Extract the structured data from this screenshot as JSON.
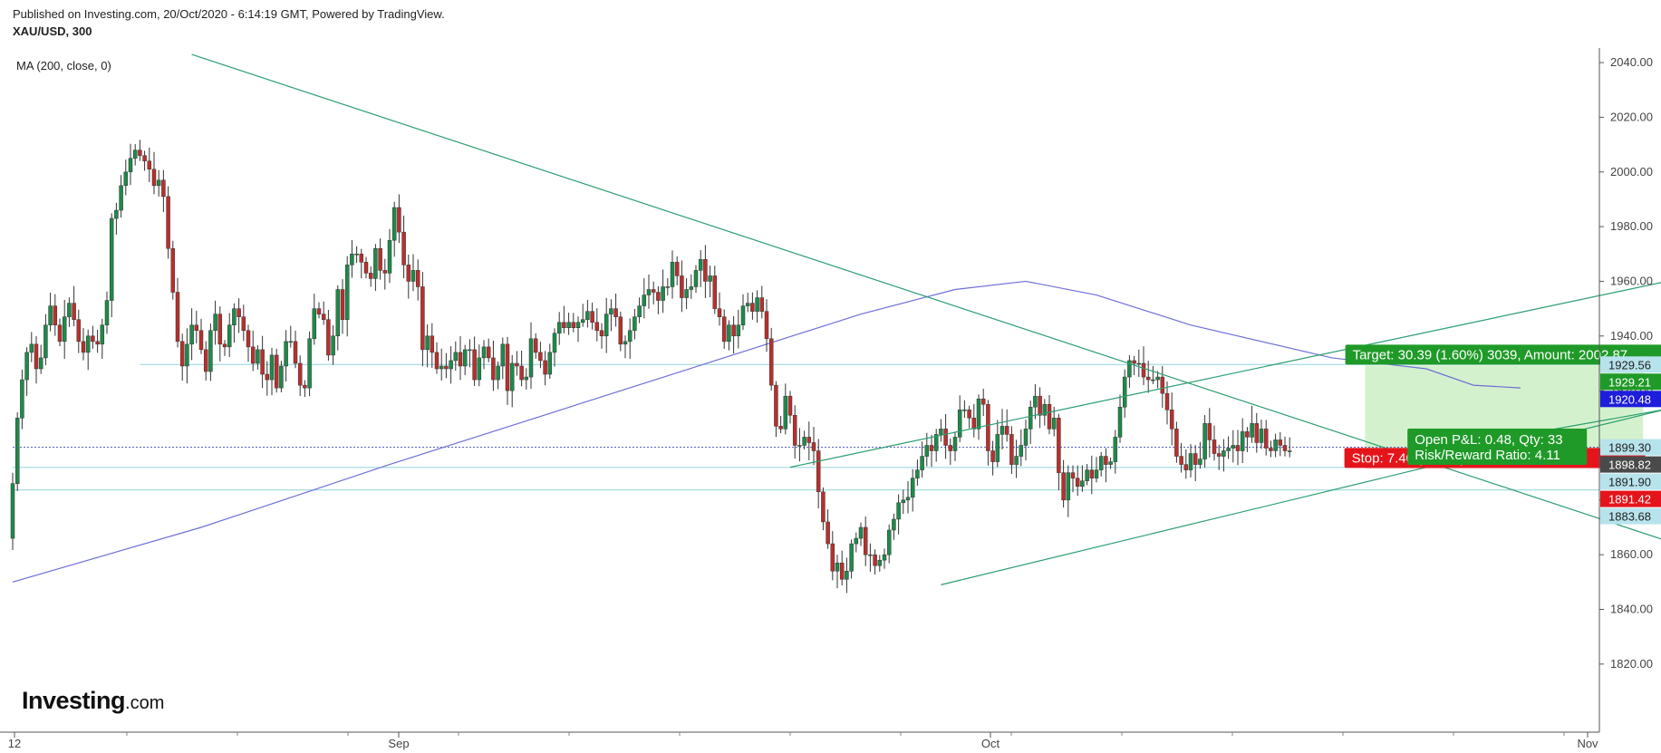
{
  "header": {
    "published": "Published on Investing.com, 20/Oct/2020 - 6:14:19 GMT, Powered by TradingView.",
    "symbol": "XAU/USD, 300",
    "indicator": "MA (200, close, 0)"
  },
  "logo": {
    "main": "Investing",
    "suffix": ".com"
  },
  "colors": {
    "up": "#1e8a4a",
    "down": "#b8302d",
    "ma": "#6f6fd8",
    "trendline": "#2a9d6f",
    "hline": "#8fd3dc",
    "target_zone": "#cdeec4",
    "stop_zone": "#f7cfcf",
    "target_label": "#1f9a28",
    "stop_label": "#e5141b"
  },
  "chart_data": {
    "type": "candlestick",
    "symbol": "XAU/USD",
    "timeframe": "300",
    "x_ticks": [
      "12",
      "Sep",
      "Oct",
      "Nov"
    ],
    "y_ticks": [
      2040,
      2020,
      2000,
      1980,
      1960,
      1940,
      1920,
      1900,
      1880,
      1860,
      1840,
      1820
    ],
    "ylim": [
      1812,
      2044
    ],
    "grid": false,
    "price_boxes": [
      {
        "label": "1929.56",
        "value": 1929.56,
        "bg": "#b7e3ec",
        "fg": "#222222"
      },
      {
        "label": "1929.21",
        "value": 1929.21,
        "bg": "#1f9a28",
        "fg": "#ffffff"
      },
      {
        "label": "1920.48",
        "value": 1920.48,
        "bg": "#1d1ddb",
        "fg": "#ffffff"
      },
      {
        "label": "1899.30",
        "value": 1899.3,
        "bg": "#b7e3ec",
        "fg": "#222222"
      },
      {
        "label": "1898.82",
        "value": 1898.82,
        "bg": "#4a4a4a",
        "fg": "#ffffff"
      },
      {
        "label": "1891.90",
        "value": 1891.9,
        "bg": "#b7e3ec",
        "fg": "#222222"
      },
      {
        "label": "1891.42",
        "value": 1891.42,
        "bg": "#e5141b",
        "fg": "#ffffff"
      },
      {
        "label": "1883.68",
        "value": 1883.68,
        "bg": "#b7e3ec",
        "fg": "#222222"
      }
    ],
    "position": {
      "target_label": "Target: 30.39 (1.60%) 3039, Amount: 2002.87",
      "open_pl": "Open P&L: 0.48, Qty: 33",
      "risk_reward": "Risk/Reward Ratio: 4.11",
      "stop_label": "Stop: 7.40 (0.39%) 740, Amount: 755.8",
      "entry": 1898.82,
      "target": 1929.21,
      "stop": 1891.42
    },
    "closes": [
      1886,
      1910,
      1924,
      1934,
      1937,
      1928,
      1932,
      1944,
      1951,
      1944,
      1938,
      1947,
      1952,
      1946,
      1938,
      1934,
      1940,
      1938,
      1937,
      1944,
      1953,
      1983,
      1986,
      1995,
      2000,
      2005,
      2008,
      2006,
      2004,
      2001,
      1995,
      1997,
      1991,
      1972,
      1956,
      1938,
      1929,
      1937,
      1944,
      1942,
      1935,
      1927,
      1942,
      1948,
      1937,
      1936,
      1944,
      1950,
      1947,
      1942,
      1936,
      1930,
      1935,
      1926,
      1924,
      1933,
      1921,
      1929,
      1938,
      1938,
      1930,
      1922,
      1921,
      1939,
      1950,
      1948,
      1946,
      1933,
      1940,
      1957,
      1946,
      1966,
      1970,
      1970,
      1967,
      1963,
      1961,
      1972,
      1964,
      1963,
      1975,
      1987,
      1978,
      1966,
      1960,
      1964,
      1958,
      1935,
      1940,
      1934,
      1928,
      1929,
      1928,
      1931,
      1934,
      1929,
      1935,
      1935,
      1924,
      1932,
      1936,
      1932,
      1924,
      1929,
      1937,
      1920,
      1930,
      1929,
      1924,
      1925,
      1939,
      1934,
      1931,
      1926,
      1934,
      1941,
      1945,
      1943,
      1945,
      1943,
      1945,
      1946,
      1949,
      1945,
      1942,
      1940,
      1948,
      1950,
      1947,
      1937,
      1938,
      1942,
      1947,
      1951,
      1955,
      1957,
      1956,
      1953,
      1958,
      1958,
      1967,
      1962,
      1954,
      1957,
      1958,
      1964,
      1968,
      1960,
      1962,
      1950,
      1947,
      1938,
      1944,
      1940,
      1944,
      1951,
      1952,
      1949,
      1954,
      1949,
      1939,
      1922,
      1907,
      1906,
      1918,
      1911,
      1900,
      1900,
      1903,
      1901,
      1898,
      1883,
      1872,
      1864,
      1854,
      1857,
      1851,
      1854,
      1864,
      1866,
      1870,
      1860,
      1860,
      1856,
      1858,
      1860,
      1869,
      1873,
      1879,
      1880,
      1881,
      1888,
      1891,
      1896,
      1900,
      1898,
      1904,
      1906,
      1900,
      1898,
      1903,
      1913,
      1913,
      1910,
      1906,
      1917,
      1915,
      1898,
      1894,
      1904,
      1907,
      1904,
      1893,
      1896,
      1900,
      1906,
      1914,
      1918,
      1911,
      1915,
      1906,
      1910,
      1890,
      1880,
      1890,
      1888,
      1885,
      1887,
      1891,
      1888,
      1891,
      1896,
      1893,
      1894,
      1903,
      1914,
      1925,
      1931,
      1930,
      1930,
      1925,
      1924,
      1924,
      1925,
      1919,
      1913,
      1906,
      1896,
      1893,
      1891,
      1897,
      1893,
      1895,
      1908,
      1902,
      1897,
      1896,
      1898,
      1899,
      1900,
      1898,
      1905,
      1903,
      1908,
      1901,
      1906,
      1899,
      1898,
      1902,
      1900,
      1898,
      1898
    ],
    "moving_average": {
      "label": "MA (200, close, 0)",
      "anchors": [
        [
          0,
          1850
        ],
        [
          40,
          1870
        ],
        [
          80,
          1893
        ],
        [
          140,
          1926
        ],
        [
          180,
          1948
        ],
        [
          200,
          1957
        ],
        [
          215,
          1960
        ],
        [
          230,
          1955
        ],
        [
          250,
          1944
        ],
        [
          280,
          1932
        ],
        [
          300,
          1928
        ],
        [
          310,
          1922
        ],
        [
          320,
          1921
        ]
      ]
    },
    "lines": {
      "downtrend": [
        [
          38,
          2043
        ],
        [
          360,
          1860
        ]
      ],
      "channel_lower": [
        [
          197,
          1849
        ],
        [
          360,
          1917
        ]
      ],
      "channel_upper": [
        [
          165,
          1892
        ],
        [
          362,
          1964
        ]
      ],
      "short_line": [
        [
          285,
          1893
        ],
        [
          360,
          1916
        ]
      ],
      "h_levels": [
        {
          "value": 1929.56,
          "from": 27
        },
        {
          "value": 1891.9,
          "from": 0
        },
        {
          "value": 1883.68,
          "from": 0
        }
      ],
      "dotted": {
        "value": 1899.3,
        "from": 0
      }
    }
  }
}
